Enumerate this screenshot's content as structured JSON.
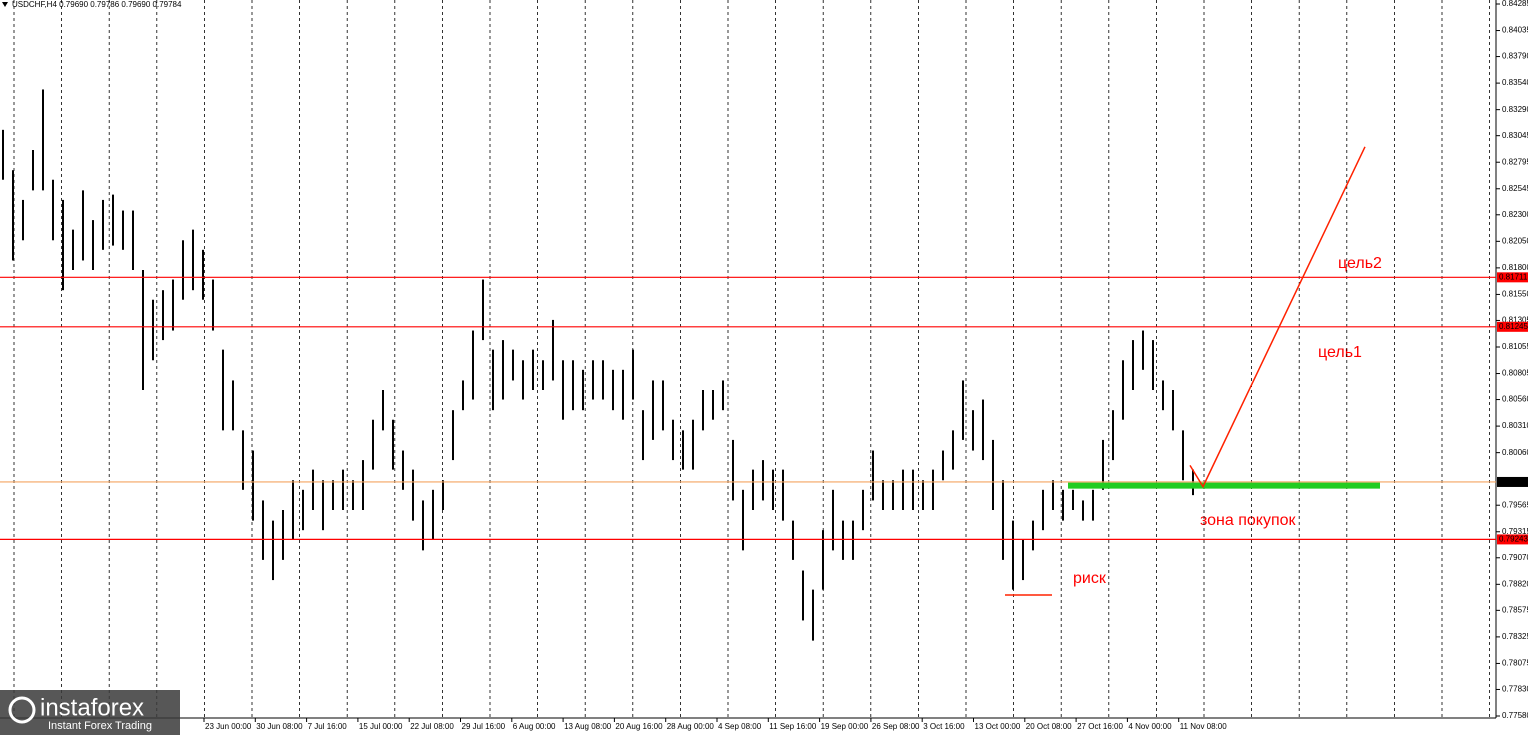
{
  "header": "USDCHF,H4  0.79690 0.79786 0.79690 0.79784",
  "logo": {
    "brand": "instaforex",
    "tagline": "Instant Forex Trading"
  },
  "chart_data": {
    "type": "candlestick",
    "color": "#000000",
    "ylim": [
      0.7758,
      0.84285
    ],
    "yticks": [
      0.84285,
      0.84035,
      {
        "value": 0.8379,
        "label": "0.83790"
      },
      {
        "value": 0.8354,
        "label": "0.83540"
      },
      {
        "value": 0.8329,
        "label": "0.83290"
      },
      0.83045,
      0.82795,
      0.82545,
      {
        "value": 0.823,
        "label": "0.82300"
      },
      {
        "value": 0.8205,
        "label": "0.82050"
      },
      {
        "value": 0.818,
        "label": "0.81800"
      },
      {
        "value": 0.8155,
        "label": "0.81550"
      },
      0.81305,
      0.81055,
      0.80805,
      {
        "value": 0.8056,
        "label": "0.80560"
      },
      {
        "value": 0.8031,
        "label": "0.80310"
      },
      {
        "value": 0.8006,
        "label": "0.80060"
      },
      0.79565,
      0.79315,
      {
        "value": 0.7907,
        "label": "0.79070"
      },
      {
        "value": 0.7882,
        "label": "0.78820"
      },
      0.78575,
      0.78325,
      0.78075,
      {
        "value": 0.7783,
        "label": "0.77830"
      },
      {
        "value": 0.7758,
        "label": "0.77580"
      }
    ],
    "categories": [
      "23 Jun 00:00",
      "30 Jun 08:00",
      "7 Jul 16:00",
      "15 Jul 00:00",
      "22 Jul 08:00",
      "29 Jul 16:00",
      "6 Aug 00:00",
      "13 Aug 08:00",
      "20 Aug 16:00",
      "28 Aug 00:00",
      "4 Sep 08:00",
      "11 Sep 16:00",
      "19 Sep 00:00",
      "26 Sep 08:00",
      "3 Oct 16:00",
      "13 Oct 00:00",
      "20 Oct 08:00",
      "27 Oct 16:00",
      "4 Nov 00:00",
      "11 Nov 08:00"
    ],
    "high": [
      0.831,
      0.8272,
      0.8244,
      0.8291,
      0.8348,
      0.8263,
      0.8244,
      0.8216,
      0.8253,
      0.8225,
      0.8244,
      0.8249,
      0.8234,
      0.8234,
      0.8178,
      0.815,
      0.8159,
      0.8169,
      0.8206,
      0.8216,
      0.8197,
      0.8169,
      0.8103,
      0.8074,
      0.8027,
      0.8008,
      0.7961,
      0.7942,
      0.7952,
      0.798,
      0.7971,
      0.799,
      0.798,
      0.798,
      0.799,
      0.798,
      0.7999,
      0.8037,
      0.8065,
      0.8037,
      0.8008,
      0.799,
      0.7961,
      0.7971,
      0.798,
      0.8046,
      0.8074,
      0.8121,
      0.8169,
      0.8103,
      0.8112,
      0.8103,
      0.8093,
      0.8103,
      0.8093,
      0.8131,
      0.8093,
      0.8093,
      0.8084,
      0.8093,
      0.8093,
      0.8084,
      0.8084,
      0.8103,
      0.8046,
      0.8074,
      0.8074,
      0.8037,
      0.8027,
      0.8037,
      0.8065,
      0.8065,
      0.8074,
      0.8018,
      0.7971,
      0.799,
      0.7999,
      0.799,
      0.799,
      0.7942,
      0.7895,
      0.7877,
      0.7933,
      0.7971,
      0.7942,
      0.7942,
      0.7971,
      0.8008,
      0.798,
      0.798,
      0.799,
      0.799,
      0.798,
      0.799,
      0.8008,
      0.8027,
      0.8074,
      0.8046,
      0.8056,
      0.8018,
      0.798,
      0.7942,
      0.7924,
      0.7942,
      0.7971,
      0.798,
      0.7971,
      0.7971,
      0.7961,
      0.7971,
      0.8018,
      0.8046,
      0.8093,
      0.8112,
      0.8121,
      0.8112,
      0.8074,
      0.8065,
      0.8027,
      0.799
    ],
    "low": [
      0.8263,
      0.8187,
      0.8206,
      0.8253,
      0.8253,
      0.8206,
      0.8159,
      0.8178,
      0.8187,
      0.8178,
      0.8197,
      0.8201,
      0.8197,
      0.8178,
      0.8065,
      0.8093,
      0.8112,
      0.8121,
      0.815,
      0.8159,
      0.815,
      0.8121,
      0.8027,
      0.8027,
      0.7971,
      0.7942,
      0.7905,
      0.7886,
      0.7905,
      0.7924,
      0.7933,
      0.7952,
      0.7933,
      0.7952,
      0.7952,
      0.7952,
      0.7952,
      0.799,
      0.8027,
      0.799,
      0.7971,
      0.7942,
      0.7914,
      0.7924,
      0.7952,
      0.7999,
      0.8046,
      0.8056,
      0.8112,
      0.8046,
      0.8056,
      0.8074,
      0.8056,
      0.8065,
      0.8065,
      0.8074,
      0.8037,
      0.8046,
      0.8046,
      0.8056,
      0.8056,
      0.8046,
      0.8037,
      0.8056,
      0.7999,
      0.8018,
      0.8027,
      0.7999,
      0.799,
      0.799,
      0.8027,
      0.8037,
      0.8046,
      0.7961,
      0.7914,
      0.7952,
      0.7961,
      0.7952,
      0.7942,
      0.7905,
      0.7848,
      0.7829,
      0.7877,
      0.7914,
      0.7905,
      0.7905,
      0.7933,
      0.7961,
      0.7952,
      0.7952,
      0.7952,
      0.7952,
      0.7952,
      0.7952,
      0.798,
      0.799,
      0.8018,
      0.8008,
      0.7999,
      0.7952,
      0.7905,
      0.7877,
      0.7886,
      0.7914,
      0.7933,
      0.7952,
      0.7942,
      0.7952,
      0.7942,
      0.7942,
      0.7971,
      0.7999,
      0.8037,
      0.8065,
      0.8084,
      0.8065,
      0.8046,
      0.8027,
      0.798,
      0.7966
    ],
    "levels": [
      {
        "value": 0.81711,
        "color": "#ff0000"
      },
      {
        "value": 0.81245,
        "color": "#ff0000"
      },
      {
        "value": 0.79243,
        "color": "#ff0000"
      },
      {
        "value": 0.79784,
        "color": "#f4a460"
      }
    ],
    "buy_zone": {
      "value": 0.7975,
      "from": 106.5,
      "to": 137.7,
      "color": "#22cc22"
    },
    "risk_line": {
      "value": 0.7872,
      "from": 100.2,
      "to": 104.9,
      "color": "#ff2200"
    },
    "trend_line": {
      "x": [
        118.7,
        120,
        136.2
      ],
      "y": [
        0.7994,
        0.7974,
        0.8294
      ],
      "color": "#ff2200"
    },
    "annotations": [
      "цель2",
      "цель1",
      "зона покупок",
      "риск"
    ]
  }
}
